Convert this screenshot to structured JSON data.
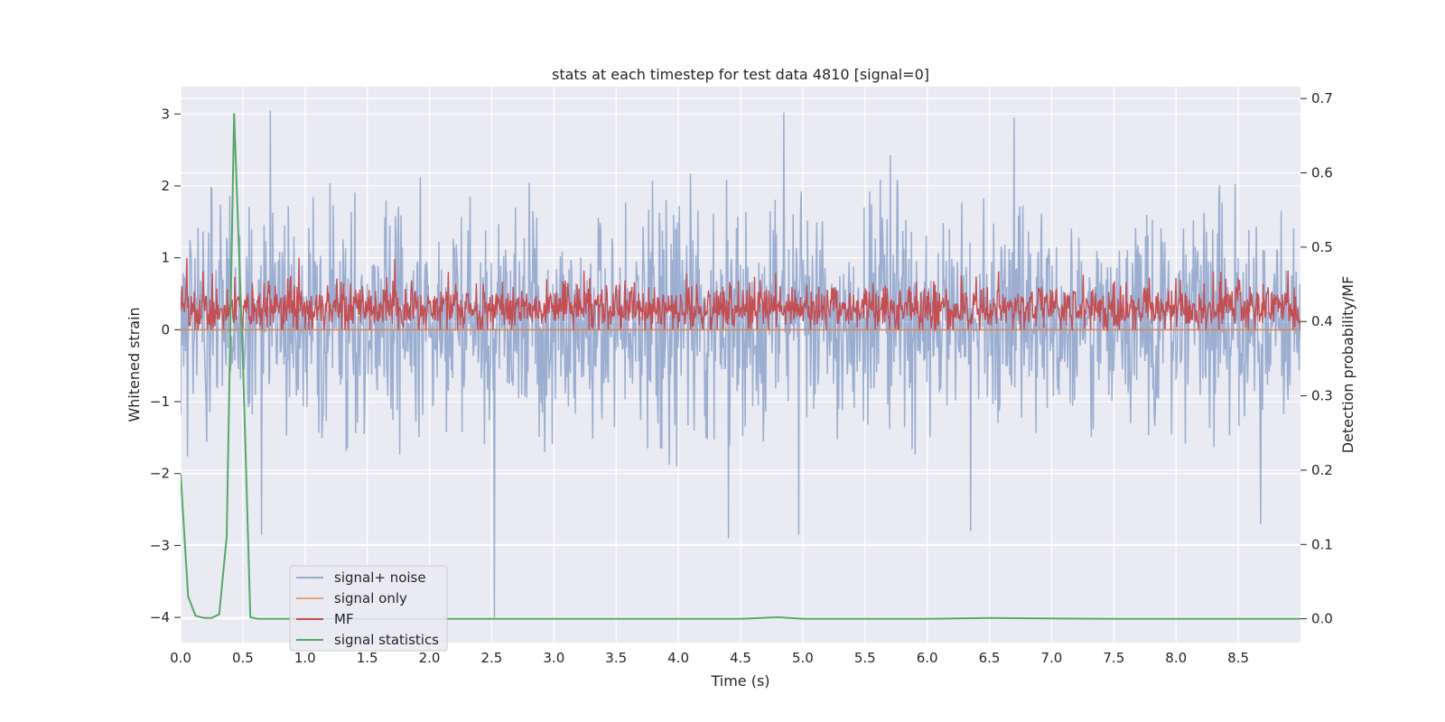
{
  "chart_data": {
    "type": "line",
    "title": "stats at each timestep for test data 4810 [signal=0]",
    "xlabel": "Time (s)",
    "ylabel": "Whitened strain",
    "y2label": "Detection probability/MF",
    "xlim": [
      0.0,
      9.0
    ],
    "ylim": [
      -4.35,
      3.38
    ],
    "y2lim": [
      -0.032,
      0.716
    ],
    "grid": true,
    "legend_position": "lower-left",
    "xticks": [
      0.0,
      0.5,
      1.0,
      1.5,
      2.0,
      2.5,
      3.0,
      3.5,
      4.0,
      4.5,
      5.0,
      5.5,
      6.0,
      6.5,
      7.0,
      7.5,
      8.0,
      8.5
    ],
    "xtick_labels": [
      "0.0",
      "0.5",
      "1.0",
      "1.5",
      "2.0",
      "2.5",
      "3.0",
      "3.5",
      "4.0",
      "4.5",
      "5.0",
      "5.5",
      "6.0",
      "6.5",
      "7.0",
      "7.5",
      "8.0",
      "8.5"
    ],
    "yticks": [
      -4,
      -3,
      -2,
      -1,
      0,
      1,
      2,
      3
    ],
    "ytick_labels": [
      "−4",
      "−3",
      "−2",
      "−1",
      "0",
      "1",
      "2",
      "3"
    ],
    "y2ticks": [
      0.0,
      0.1,
      0.2,
      0.3,
      0.4,
      0.5,
      0.6,
      0.7
    ],
    "y2tick_labels": [
      "0.0",
      "0.1",
      "0.2",
      "0.3",
      "0.4",
      "0.5",
      "0.6",
      "0.7"
    ],
    "series": [
      {
        "name": "signal+ noise",
        "axis": "left",
        "color": "#4c72b0",
        "opacity": 0.5,
        "kind": "noise",
        "sample_count": 1800,
        "typical_range": [
          -1.6,
          1.9
        ],
        "extremes": [
          {
            "x": 0.72,
            "y": 3.05
          },
          {
            "x": 4.85,
            "y": 3.02
          },
          {
            "x": 6.7,
            "y": 2.95
          },
          {
            "x": 2.52,
            "y": -4.0
          },
          {
            "x": 4.4,
            "y": -2.9
          },
          {
            "x": 4.97,
            "y": -2.85
          },
          {
            "x": 6.35,
            "y": -2.8
          },
          {
            "x": 0.65,
            "y": -2.85
          },
          {
            "x": 8.68,
            "y": -2.7
          }
        ]
      },
      {
        "name": "signal only",
        "axis": "left",
        "color": "#dd8452",
        "kind": "constant",
        "value": 0.0
      },
      {
        "name": "MF",
        "axis": "left",
        "color": "#c44e52",
        "kind": "noise",
        "sample_count": 1800,
        "typical_range": [
          0.0,
          0.75
        ],
        "extremes": [
          {
            "x": 0.05,
            "y": 1.0
          },
          {
            "x": 0.95,
            "y": 1.0
          },
          {
            "x": 1.72,
            "y": 0.98
          }
        ]
      },
      {
        "name": "signal statistics",
        "axis": "right",
        "color": "#55a868",
        "kind": "line",
        "x": [
          0.0,
          0.06,
          0.12,
          0.19,
          0.25,
          0.31,
          0.37,
          0.43,
          0.5,
          0.56,
          0.62,
          0.8,
          1.5,
          2.5,
          3.5,
          4.5,
          4.8,
          5.0,
          6.0,
          6.5,
          7.0,
          7.5,
          8.0,
          8.5,
          9.0
        ],
        "y": [
          0.195,
          0.03,
          0.004,
          0.001,
          0.001,
          0.006,
          0.11,
          0.68,
          0.35,
          0.002,
          0.0,
          0.0,
          0.0,
          0.0,
          0.0,
          0.0,
          0.002,
          0.0,
          0.0,
          0.001,
          0.0005,
          0.0,
          0.0,
          0.0,
          0.0
        ]
      }
    ]
  },
  "legend": {
    "items": [
      {
        "label": "signal+ noise",
        "color": "#4c72b0"
      },
      {
        "label": "signal only",
        "color": "#dd8452"
      },
      {
        "label": "MF",
        "color": "#c44e52"
      },
      {
        "label": "signal statistics",
        "color": "#55a868"
      }
    ]
  },
  "colors": {
    "plot_background": "#eaeaf2",
    "grid": "#ffffff",
    "text": "#262626"
  }
}
